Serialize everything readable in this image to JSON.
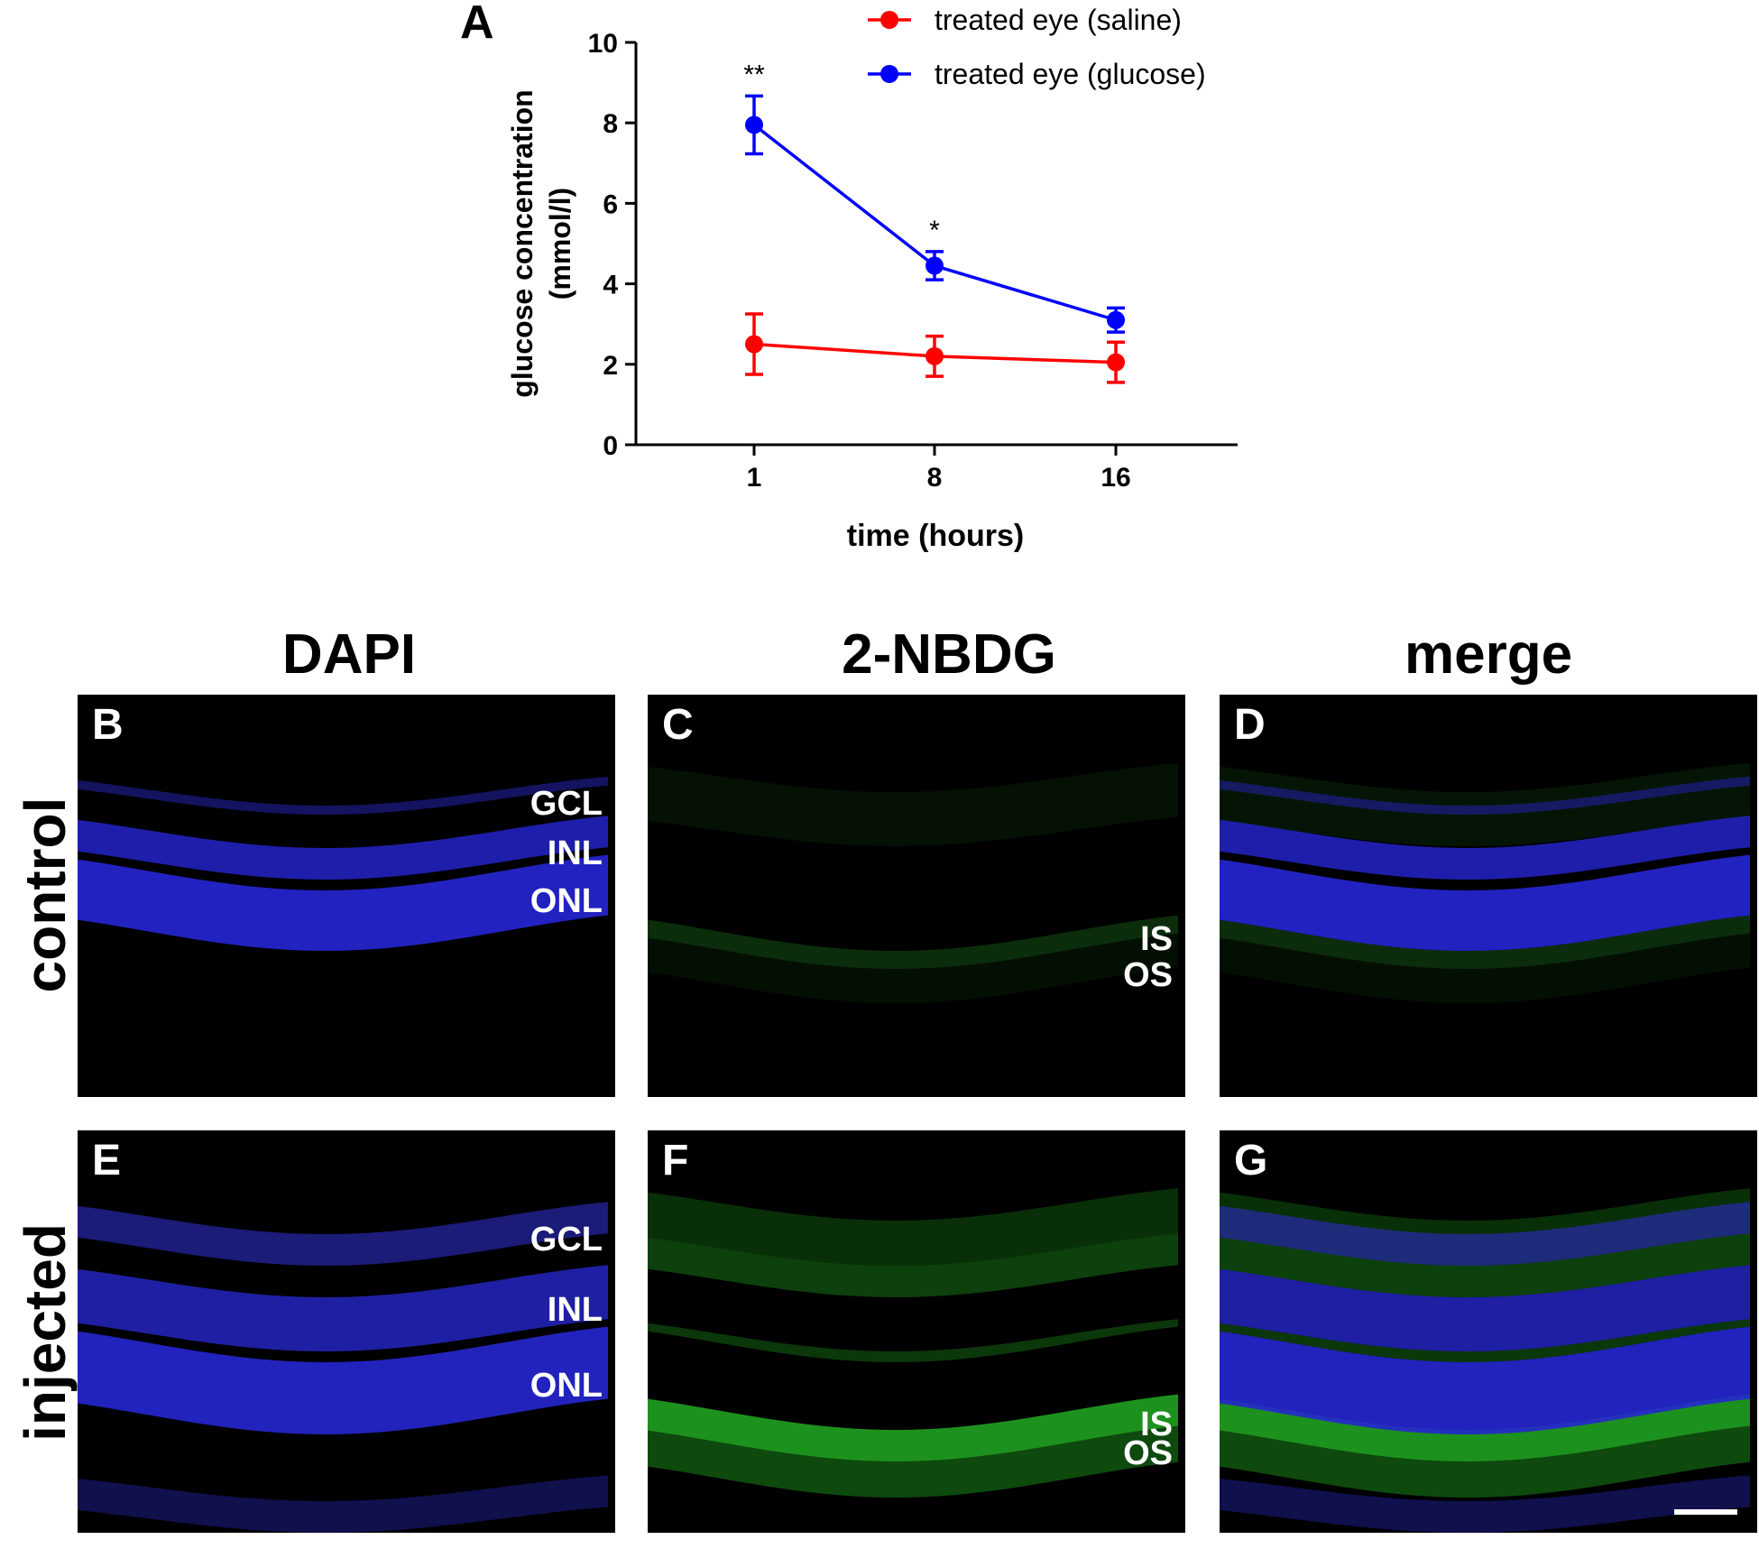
{
  "chart_data": {
    "type": "line",
    "panel_label": "A",
    "x": [
      1,
      8,
      16
    ],
    "xtick_labels": [
      "1",
      "8",
      "16"
    ],
    "xlabel": "time (hours)",
    "ylabel_line1": "glucose concentration",
    "ylabel_line2": "(mmol/l)",
    "ylim": [
      0,
      10
    ],
    "yticks": [
      0,
      2,
      4,
      6,
      8,
      10
    ],
    "series": [
      {
        "name": "treated eye (saline)",
        "color": "#ff0000",
        "values": [
          2.5,
          2.2,
          2.05
        ],
        "errors": [
          0.75,
          0.5,
          0.5
        ],
        "annotations": [
          "",
          "",
          ""
        ]
      },
      {
        "name": "treated eye (glucose)",
        "color": "#0000ff",
        "values": [
          7.95,
          4.45,
          3.1
        ],
        "errors": [
          0.72,
          0.35,
          0.3
        ],
        "annotations": [
          "**",
          "*",
          ""
        ]
      }
    ]
  },
  "columns": [
    "DAPI",
    "2-NBDG",
    "merge"
  ],
  "rows": [
    "control",
    "injected"
  ],
  "panels": [
    {
      "label": "B",
      "type": "dapi",
      "row": 0,
      "layer_labels": [
        "GCL",
        "INL",
        "ONL"
      ]
    },
    {
      "label": "C",
      "type": "nbdg",
      "row": 0,
      "layer_labels": [
        "IS",
        "OS"
      ]
    },
    {
      "label": "D",
      "type": "merge",
      "row": 0,
      "layer_labels": []
    },
    {
      "label": "E",
      "type": "dapi",
      "row": 1,
      "layer_labels": [
        "GCL",
        "INL",
        "ONL"
      ]
    },
    {
      "label": "F",
      "type": "nbdg",
      "row": 1,
      "layer_labels": [
        "IS",
        "OS"
      ]
    },
    {
      "label": "G",
      "type": "merge",
      "row": 1,
      "layer_labels": [],
      "scale_bar": true
    }
  ]
}
